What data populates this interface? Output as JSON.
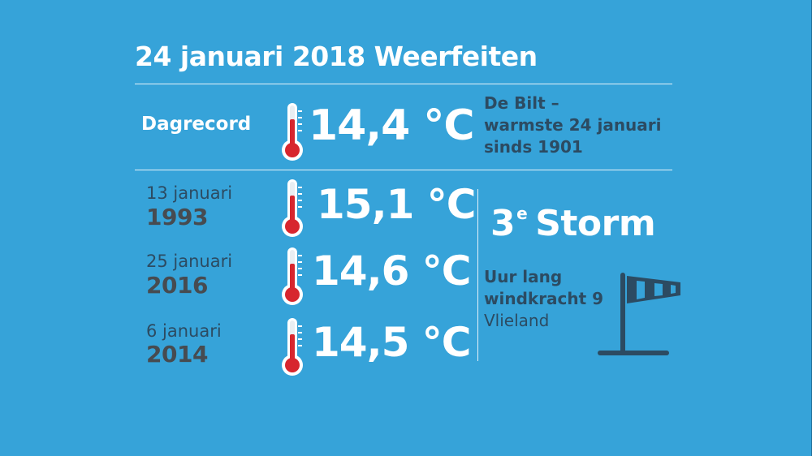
{
  "title": "24 januari 2018 Weerfeiten",
  "record": {
    "label": "Dagrecord",
    "temperature": "14,4 °C",
    "note_lines": [
      "De Bilt –",
      "warmste 24 januari",
      "sinds 1901"
    ]
  },
  "history": [
    {
      "date": "13 januari",
      "year": "1993",
      "temperature": "15,1 °C"
    },
    {
      "date": "25 januari",
      "year": "2016",
      "temperature": "14,6 °C"
    },
    {
      "date": "6 januari",
      "year": "2014",
      "temperature": "14,5 °C"
    }
  ],
  "storm": {
    "number": "3",
    "suffix": "e",
    "label": "Storm",
    "line1": "Uur lang",
    "line2": "windkracht 9",
    "line3": "Vlieland"
  },
  "icons": [
    "thermometer-icon",
    "windsock-icon"
  ],
  "colors": {
    "background": "#36a3d9",
    "text_dark": "#2c4b62",
    "year_gray": "#474b50",
    "thermometer_red": "#d7262e",
    "windsock_dark": "#2c4b62"
  }
}
